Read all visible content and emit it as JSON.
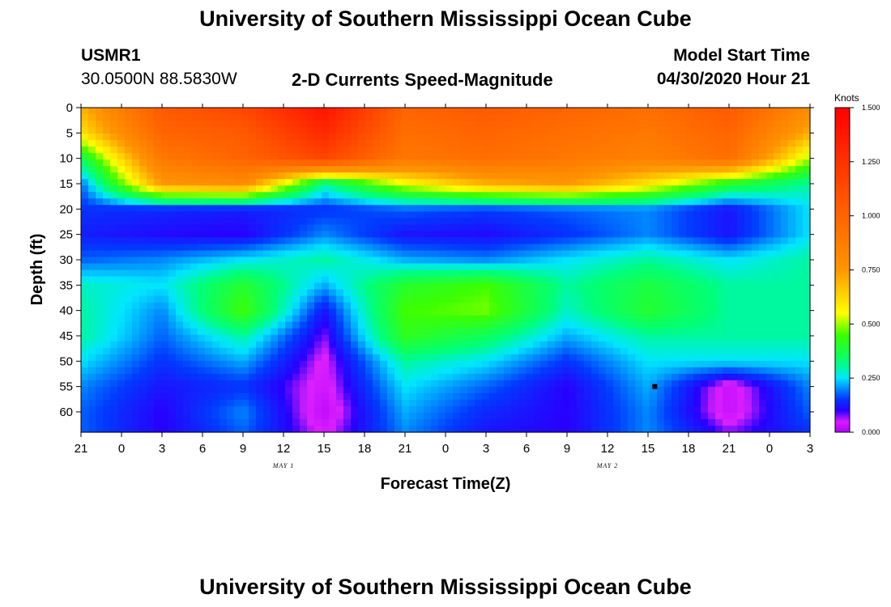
{
  "header": {
    "title": "University of Southern Mississippi Ocean Cube",
    "station": "USMR1",
    "coords": "30.0500N 88.5830W",
    "plot_title": "2-D Currents Speed-Magnitude",
    "model_label": "Model Start Time",
    "model_time": "04/30/2020 Hour 21"
  },
  "footer": {
    "title": "University of Southern Mississippi Ocean Cube"
  },
  "colors": {
    "scale": [
      "#b000ff",
      "#e020ff",
      "#0000ff",
      "#2060ff",
      "#00ffff",
      "#00ff40",
      "#40ff00",
      "#ffff00",
      "#ff8000",
      "#ff4000",
      "#ff0000"
    ]
  },
  "chart_data": {
    "type": "heatmap",
    "title": "2-D Currents Speed-Magnitude",
    "xlabel": "Forecast Time(Z)",
    "ylabel": "Depth (ft)",
    "x_ticks": [
      "21",
      "0",
      "3",
      "6",
      "9",
      "12",
      "15",
      "18",
      "21",
      "0",
      "3",
      "6",
      "9",
      "12",
      "15",
      "18",
      "21",
      "0",
      "3"
    ],
    "x_date_labels": [
      {
        "text": "MAY 1",
        "at_tick": 5
      },
      {
        "text": "MAY 2",
        "at_tick": 13
      }
    ],
    "y_ticks": [
      "0",
      "5",
      "10",
      "15",
      "20",
      "25",
      "30",
      "35",
      "40",
      "45",
      "50",
      "55",
      "60"
    ],
    "ylim": [
      0,
      64
    ],
    "colorbar": {
      "label": "Knots",
      "ticks": [
        "1.500",
        "1.250",
        "1.000",
        "0.750",
        "0.500",
        "0.250",
        "0.000"
      ],
      "range": [
        0,
        1.5
      ]
    },
    "grid_hours": [
      0,
      6,
      12,
      18,
      24,
      30,
      36,
      42,
      48,
      54
    ],
    "grid_depths": [
      0,
      5,
      10,
      15,
      20,
      25,
      30,
      35,
      40,
      45,
      50,
      55,
      60,
      64
    ],
    "speed_knots": [
      [
        0.7,
        1.05,
        1.15,
        1.4,
        1.0,
        1.05,
        1.0,
        0.95,
        1.05,
        0.8
      ],
      [
        0.6,
        1.0,
        1.05,
        1.3,
        0.95,
        1.0,
        0.95,
        0.9,
        1.0,
        0.7
      ],
      [
        0.35,
        0.9,
        1.0,
        1.15,
        0.9,
        0.95,
        0.9,
        0.85,
        0.95,
        0.5
      ],
      [
        0.18,
        0.75,
        0.8,
        0.3,
        0.55,
        0.7,
        0.75,
        0.6,
        0.4,
        0.3
      ],
      [
        0.15,
        0.14,
        0.13,
        0.15,
        0.18,
        0.16,
        0.18,
        0.2,
        0.12,
        0.25
      ],
      [
        0.13,
        0.11,
        0.1,
        0.2,
        0.12,
        0.11,
        0.15,
        0.2,
        0.12,
        0.25
      ],
      [
        0.18,
        0.2,
        0.25,
        0.3,
        0.22,
        0.2,
        0.25,
        0.3,
        0.25,
        0.3
      ],
      [
        0.28,
        0.25,
        0.4,
        0.22,
        0.4,
        0.45,
        0.3,
        0.38,
        0.3,
        0.3
      ],
      [
        0.3,
        0.2,
        0.45,
        0.12,
        0.45,
        0.48,
        0.28,
        0.4,
        0.3,
        0.3
      ],
      [
        0.3,
        0.18,
        0.3,
        0.08,
        0.42,
        0.35,
        0.22,
        0.3,
        0.3,
        0.3
      ],
      [
        0.25,
        0.15,
        0.22,
        0.05,
        0.3,
        0.25,
        0.15,
        0.25,
        0.25,
        0.25
      ],
      [
        0.2,
        0.12,
        0.15,
        0.04,
        0.25,
        0.18,
        0.1,
        0.22,
        0.03,
        0.2
      ],
      [
        0.18,
        0.1,
        0.2,
        0.02,
        0.22,
        0.14,
        0.1,
        0.2,
        0.03,
        0.18
      ],
      [
        0.18,
        0.1,
        0.18,
        0.05,
        0.2,
        0.12,
        0.1,
        0.2,
        0.08,
        0.15
      ]
    ],
    "marker": {
      "hour": 42.5,
      "depth": 55
    }
  }
}
